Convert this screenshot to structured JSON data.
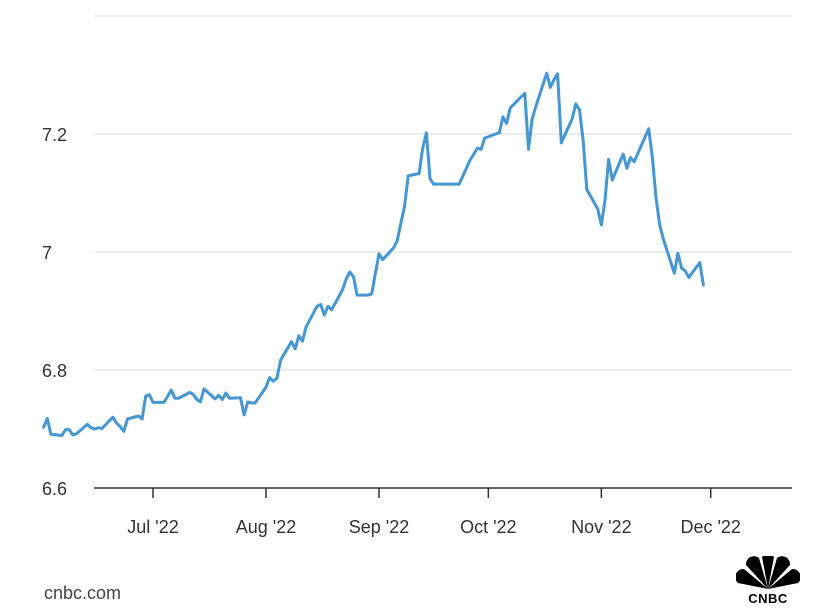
{
  "source_label": "cnbc.com",
  "brand": {
    "name": "CNBC"
  },
  "colors": {
    "line": "#4596d3"
  },
  "chart_data": {
    "type": "line",
    "x_tick_labels": [
      "Jul '22",
      "Aug '22",
      "Sep '22",
      "Oct '22",
      "Nov '22",
      "Dec '22"
    ],
    "x_tick_dates": [
      "2022-07-01",
      "2022-08-01",
      "2022-09-01",
      "2022-10-01",
      "2022-11-01",
      "2022-12-01"
    ],
    "y_ticks": [
      6.6,
      6.8,
      7,
      7.2
    ],
    "y_tick_labels": [
      "6.6",
      "6.8",
      "7",
      "7.2"
    ],
    "ylim": [
      6.6,
      7.4
    ],
    "xlim": [
      "2022-06-01",
      "2022-12-12"
    ],
    "grid": true,
    "series": [
      {
        "values": [
          [
            "2022-06-01",
            6.703
          ],
          [
            "2022-06-02",
            6.718
          ],
          [
            "2022-06-03",
            6.691
          ],
          [
            "2022-06-06",
            6.689
          ],
          [
            "2022-06-07",
            6.699
          ],
          [
            "2022-06-08",
            6.699
          ],
          [
            "2022-06-09",
            6.69
          ],
          [
            "2022-06-10",
            6.692
          ],
          [
            "2022-06-13",
            6.708
          ],
          [
            "2022-06-14",
            6.702
          ],
          [
            "2022-06-15",
            6.7
          ],
          [
            "2022-06-16",
            6.702
          ],
          [
            "2022-06-17",
            6.701
          ],
          [
            "2022-06-20",
            6.72
          ],
          [
            "2022-06-21",
            6.71
          ],
          [
            "2022-06-22",
            6.704
          ],
          [
            "2022-06-23",
            6.696
          ],
          [
            "2022-06-24",
            6.717
          ],
          [
            "2022-06-27",
            6.722
          ],
          [
            "2022-06-28",
            6.717
          ],
          [
            "2022-06-29",
            6.756
          ],
          [
            "2022-06-30",
            6.758
          ],
          [
            "2022-07-01",
            6.745
          ],
          [
            "2022-07-04",
            6.745
          ],
          [
            "2022-07-05",
            6.755
          ],
          [
            "2022-07-06",
            6.766
          ],
          [
            "2022-07-07",
            6.752
          ],
          [
            "2022-07-08",
            6.752
          ],
          [
            "2022-07-11",
            6.762
          ],
          [
            "2022-07-12",
            6.759
          ],
          [
            "2022-07-13",
            6.75
          ],
          [
            "2022-07-14",
            6.746
          ],
          [
            "2022-07-15",
            6.768
          ],
          [
            "2022-07-18",
            6.751
          ],
          [
            "2022-07-19",
            6.757
          ],
          [
            "2022-07-20",
            6.75
          ],
          [
            "2022-07-21",
            6.761
          ],
          [
            "2022-07-22",
            6.752
          ],
          [
            "2022-07-25",
            6.753
          ],
          [
            "2022-07-26",
            6.724
          ],
          [
            "2022-07-27",
            6.746
          ],
          [
            "2022-07-28",
            6.744
          ],
          [
            "2022-07-29",
            6.744
          ],
          [
            "2022-08-01",
            6.771
          ],
          [
            "2022-08-02",
            6.787
          ],
          [
            "2022-08-03",
            6.781
          ],
          [
            "2022-08-04",
            6.786
          ],
          [
            "2022-08-05",
            6.817
          ],
          [
            "2022-08-08",
            6.848
          ],
          [
            "2022-08-09",
            6.836
          ],
          [
            "2022-08-10",
            6.858
          ],
          [
            "2022-08-11",
            6.849
          ],
          [
            "2022-08-12",
            6.873
          ],
          [
            "2022-08-15",
            6.908
          ],
          [
            "2022-08-16",
            6.911
          ],
          [
            "2022-08-17",
            6.893
          ],
          [
            "2022-08-18",
            6.908
          ],
          [
            "2022-08-19",
            6.902
          ],
          [
            "2022-08-22",
            6.936
          ],
          [
            "2022-08-23",
            6.954
          ],
          [
            "2022-08-24",
            6.966
          ],
          [
            "2022-08-25",
            6.958
          ],
          [
            "2022-08-26",
            6.927
          ],
          [
            "2022-08-29",
            6.927
          ],
          [
            "2022-08-30",
            6.929
          ],
          [
            "2022-08-31",
            6.964
          ],
          [
            "2022-09-01",
            6.997
          ],
          [
            "2022-09-02",
            6.987
          ],
          [
            "2022-09-05",
            7.007
          ],
          [
            "2022-09-06",
            7.019
          ],
          [
            "2022-09-07",
            7.049
          ],
          [
            "2022-09-08",
            7.077
          ],
          [
            "2022-09-09",
            7.129
          ],
          [
            "2022-09-12",
            7.133
          ],
          [
            "2022-09-13",
            7.176
          ],
          [
            "2022-09-14",
            7.202
          ],
          [
            "2022-09-15",
            7.124
          ],
          [
            "2022-09-16",
            7.115
          ],
          [
            "2022-09-19",
            7.115
          ],
          [
            "2022-09-20",
            7.115
          ],
          [
            "2022-09-21",
            7.115
          ],
          [
            "2022-09-22",
            7.115
          ],
          [
            "2022-09-23",
            7.115
          ],
          [
            "2022-09-26",
            7.156
          ],
          [
            "2022-09-27",
            7.166
          ],
          [
            "2022-09-28",
            7.176
          ],
          [
            "2022-09-29",
            7.174
          ],
          [
            "2022-09-30",
            7.193
          ],
          [
            "2022-10-03",
            7.2
          ],
          [
            "2022-10-04",
            7.202
          ],
          [
            "2022-10-05",
            7.229
          ],
          [
            "2022-10-06",
            7.218
          ],
          [
            "2022-10-07",
            7.244
          ],
          [
            "2022-10-10",
            7.263
          ],
          [
            "2022-10-11",
            7.269
          ],
          [
            "2022-10-12",
            7.174
          ],
          [
            "2022-10-13",
            7.225
          ],
          [
            "2022-10-14",
            7.246
          ],
          [
            "2022-10-17",
            7.303
          ],
          [
            "2022-10-18",
            7.279
          ],
          [
            "2022-10-19",
            7.292
          ],
          [
            "2022-10-20",
            7.302
          ],
          [
            "2022-10-21",
            7.185
          ],
          [
            "2022-10-24",
            7.226
          ],
          [
            "2022-10-25",
            7.251
          ],
          [
            "2022-10-26",
            7.241
          ],
          [
            "2022-10-27",
            7.19
          ],
          [
            "2022-10-28",
            7.106
          ],
          [
            "2022-10-31",
            7.073
          ],
          [
            "2022-11-01",
            7.046
          ],
          [
            "2022-11-02",
            7.088
          ],
          [
            "2022-11-03",
            7.157
          ],
          [
            "2022-11-04",
            7.122
          ],
          [
            "2022-11-07",
            7.166
          ],
          [
            "2022-11-08",
            7.142
          ],
          [
            "2022-11-09",
            7.16
          ],
          [
            "2022-11-10",
            7.153
          ],
          [
            "2022-11-11",
            7.167
          ],
          [
            "2022-11-14",
            7.209
          ],
          [
            "2022-11-15",
            7.16
          ],
          [
            "2022-11-16",
            7.092
          ],
          [
            "2022-11-17",
            7.046
          ],
          [
            "2022-11-18",
            7.022
          ],
          [
            "2022-11-21",
            6.964
          ],
          [
            "2022-11-22",
            6.998
          ],
          [
            "2022-11-23",
            6.973
          ],
          [
            "2022-11-24",
            6.968
          ],
          [
            "2022-11-25",
            6.957
          ],
          [
            "2022-11-28",
            6.982
          ],
          [
            "2022-11-29",
            6.944
          ]
        ]
      }
    ]
  }
}
